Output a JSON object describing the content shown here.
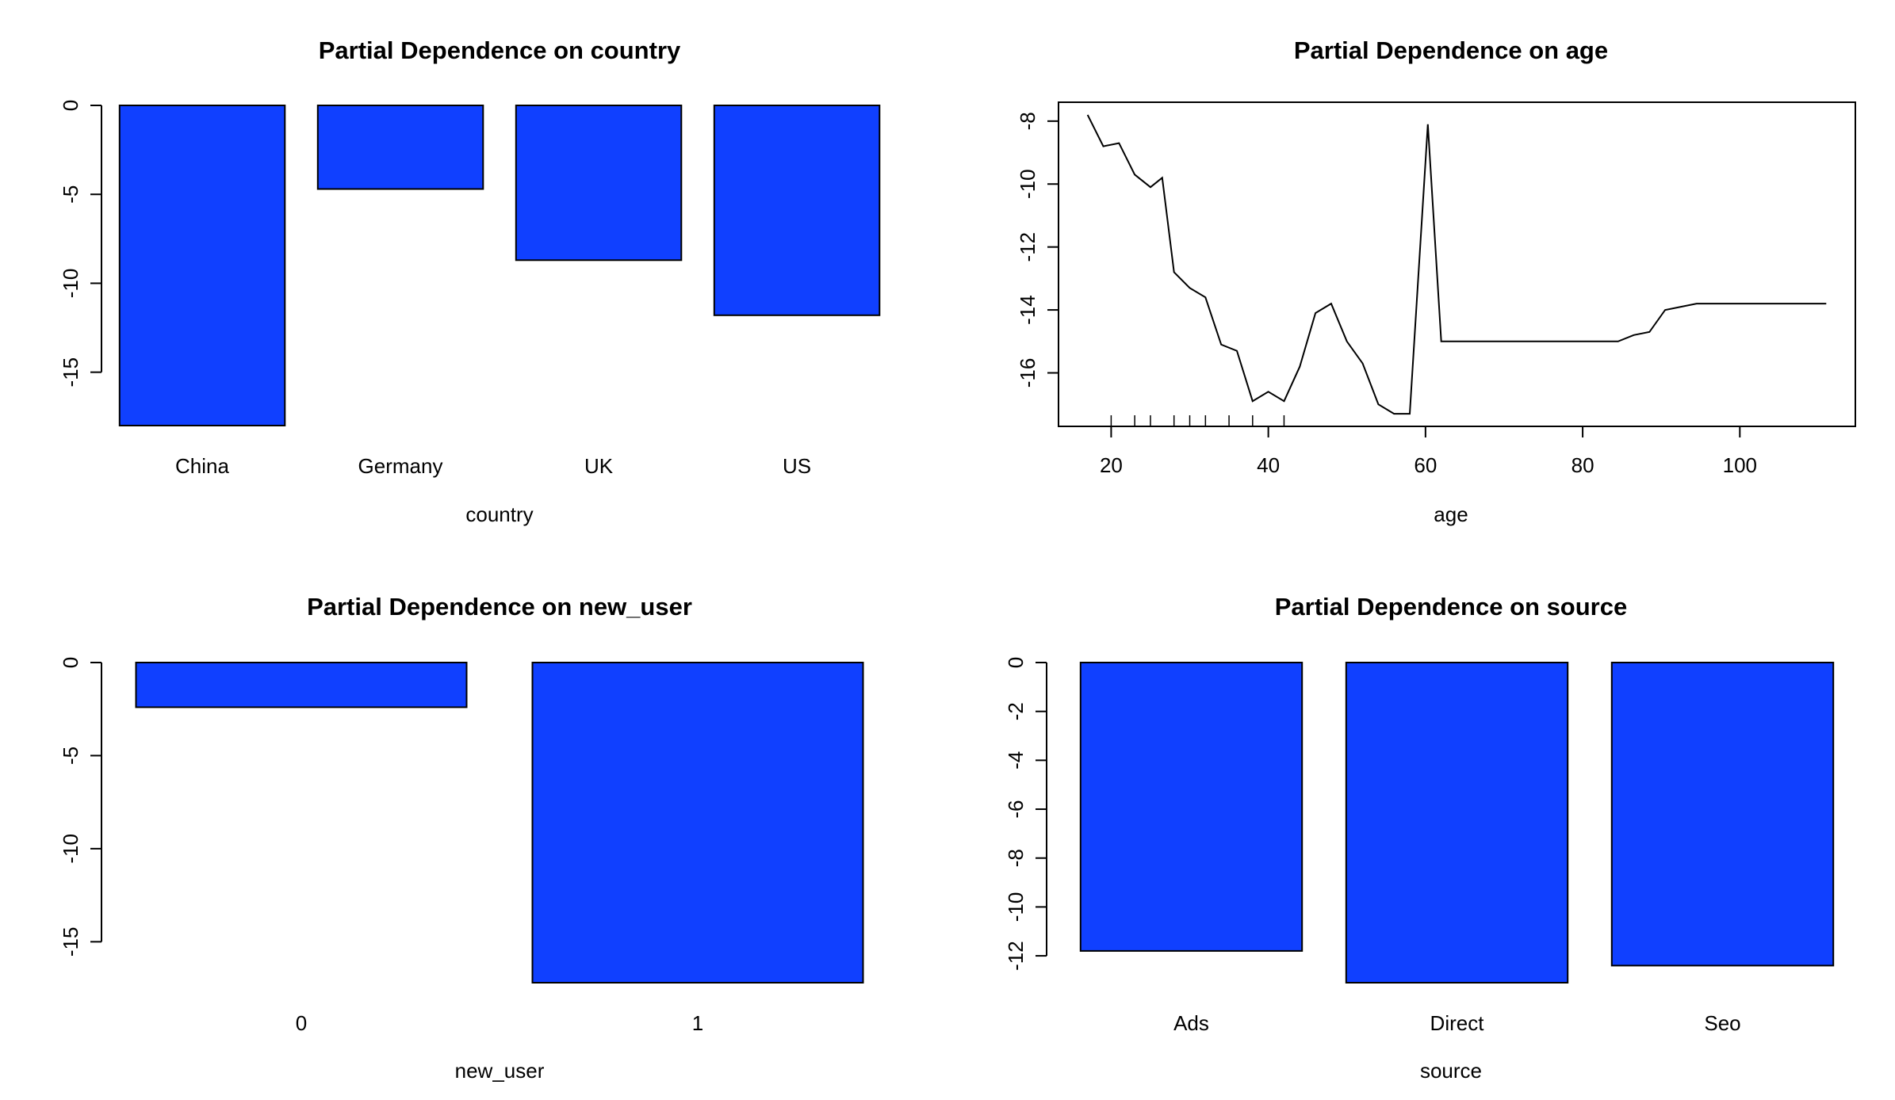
{
  "bar_color": "#1040ff",
  "chart_data": [
    {
      "type": "bar",
      "title": "Partial Dependence on country",
      "xlabel": "country",
      "ylabel": "",
      "categories": [
        "China",
        "Germany",
        "UK",
        "US"
      ],
      "values": [
        -18.0,
        -4.7,
        -8.7,
        -11.8
      ],
      "yticks": [
        0,
        -5,
        -10,
        -15
      ],
      "ylim": [
        -18,
        0
      ]
    },
    {
      "type": "line",
      "title": "Partial Dependence on age",
      "xlabel": "age",
      "ylabel": "",
      "x": [
        17,
        19,
        21,
        23,
        25,
        26.5,
        28,
        30,
        32,
        34,
        36,
        38,
        40,
        42,
        44,
        46,
        48,
        50,
        52,
        54,
        56,
        58,
        60.3,
        62,
        64,
        66,
        68,
        70,
        72,
        74,
        76,
        78,
        80,
        82,
        84.5,
        86.5,
        88.5,
        90.5,
        92.5,
        94.5,
        100,
        105,
        111
      ],
      "y": [
        -7.8,
        -8.8,
        -8.7,
        -9.7,
        -10.1,
        -9.8,
        -12.8,
        -13.3,
        -13.6,
        -15.1,
        -15.3,
        -16.9,
        -16.6,
        -16.9,
        -15.8,
        -14.1,
        -13.8,
        -15.0,
        -15.7,
        -17.0,
        -17.3,
        -17.3,
        -8.1,
        -15.0,
        -15.0,
        -15.0,
        -15.0,
        -15.0,
        -15.0,
        -15.0,
        -15.0,
        -15.0,
        -15.0,
        -15.0,
        -15.0,
        -14.8,
        -14.7,
        -14.0,
        -13.9,
        -13.8,
        -13.8,
        -13.8,
        -13.8
      ],
      "rug": [
        20,
        23,
        25,
        28,
        30,
        32,
        35,
        38,
        42
      ],
      "xticks": [
        20,
        40,
        60,
        80,
        100
      ],
      "yticks": [
        -8,
        -10,
        -12,
        -14,
        -16
      ],
      "xlim": [
        13.3,
        114.7
      ],
      "ylim": [
        -17.7,
        -7.4
      ]
    },
    {
      "type": "bar",
      "title": "Partial Dependence on new_user",
      "xlabel": "new_user",
      "ylabel": "",
      "categories": [
        "0",
        "1"
      ],
      "values": [
        -2.4,
        -17.2
      ],
      "yticks": [
        0,
        -5,
        -10,
        -15
      ],
      "ylim": [
        -17.2,
        0
      ]
    },
    {
      "type": "bar",
      "title": "Partial Dependence on source",
      "xlabel": "source",
      "ylabel": "",
      "categories": [
        "Ads",
        "Direct",
        "Seo"
      ],
      "values": [
        -11.8,
        -13.1,
        -12.4
      ],
      "yticks": [
        0,
        -2,
        -4,
        -6,
        -8,
        -10,
        -12
      ],
      "ylim": [
        -13.1,
        0
      ]
    }
  ]
}
